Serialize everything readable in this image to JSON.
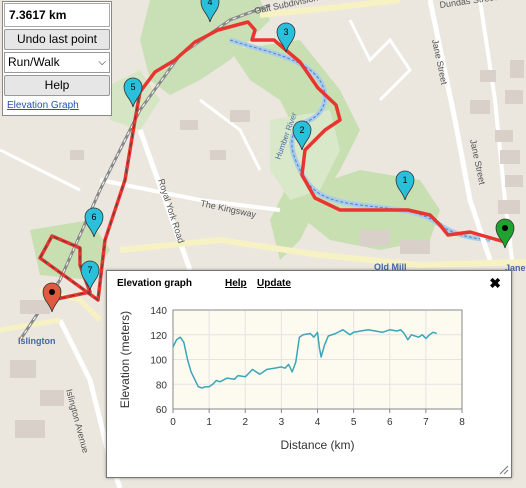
{
  "controls": {
    "distance": "7.3617 km",
    "undo_label": "Undo last point",
    "mode_value": "Run/Walk",
    "help_label": "Help",
    "elevation_link": "Elevation Graph"
  },
  "map": {
    "labels": {
      "dundas": "Dundas Street West",
      "subdivision": "Galt Subdivision",
      "royal_york": "Royal York Road",
      "kingsway": "The Kingsway",
      "jane1": "Jane Street",
      "jane2": "Jane Street",
      "old_mill": "Old Mill",
      "jane_stn": "Jane",
      "islington": "Islington",
      "islington_ave": "Islington Avenue",
      "humber": "Humber River"
    },
    "markers": [
      {
        "label": "1"
      },
      {
        "label": "2"
      },
      {
        "label": "3"
      },
      {
        "label": "4"
      },
      {
        "label": "5"
      },
      {
        "label": "6"
      },
      {
        "label": "7"
      }
    ],
    "route_color": "#e8352f",
    "marker_color": "#29c0dc",
    "start_color": "#1fa32e",
    "end_color": "#e05a40"
  },
  "elevation": {
    "title": "Elevation graph",
    "help_label": "Help",
    "update_label": "Update",
    "close_symbol": "✖"
  },
  "chart_data": {
    "type": "line",
    "title": "",
    "xlabel": "Distance (km)",
    "ylabel": "Elevation (meters)",
    "xlim": [
      0,
      8
    ],
    "ylim": [
      60,
      140
    ],
    "xticks": [
      "0",
      "1",
      "2",
      "3",
      "4",
      "5",
      "6",
      "7",
      "8"
    ],
    "yticks": [
      "60",
      "80",
      "100",
      "120",
      "140"
    ],
    "grid": true,
    "line_color": "#3aa6b8",
    "series": [
      {
        "x": [
          0,
          0.1,
          0.2,
          0.3,
          0.4,
          0.5,
          0.6,
          0.7,
          0.8,
          0.9,
          1.0,
          1.1,
          1.2,
          1.3,
          1.5,
          1.7,
          1.8,
          2.0,
          2.2,
          2.4,
          2.5,
          2.6,
          2.8,
          3.0,
          3.1,
          3.2,
          3.3,
          3.4,
          3.5,
          3.6,
          3.8,
          3.9,
          4.0,
          4.05,
          4.1,
          4.2,
          4.3,
          4.5,
          4.7,
          4.9,
          5.0,
          5.2,
          5.4,
          5.6,
          5.8,
          6.0,
          6.2,
          6.3,
          6.4,
          6.5,
          6.6,
          6.8,
          6.9,
          7.0,
          7.1,
          7.2,
          7.3
        ],
        "y": [
          110,
          116,
          118,
          114,
          100,
          90,
          84,
          78,
          77,
          78,
          78,
          80,
          83,
          82,
          85,
          84,
          87,
          86,
          92,
          88,
          90,
          92,
          93,
          94,
          93,
          96,
          90,
          98,
          118,
          120,
          121,
          118,
          122,
          110,
          102,
          112,
          119,
          121,
          124,
          120,
          122,
          123,
          124,
          123,
          122,
          124,
          123,
          124,
          121,
          116,
          120,
          118,
          120,
          117,
          120,
          122,
          121
        ]
      }
    ]
  }
}
